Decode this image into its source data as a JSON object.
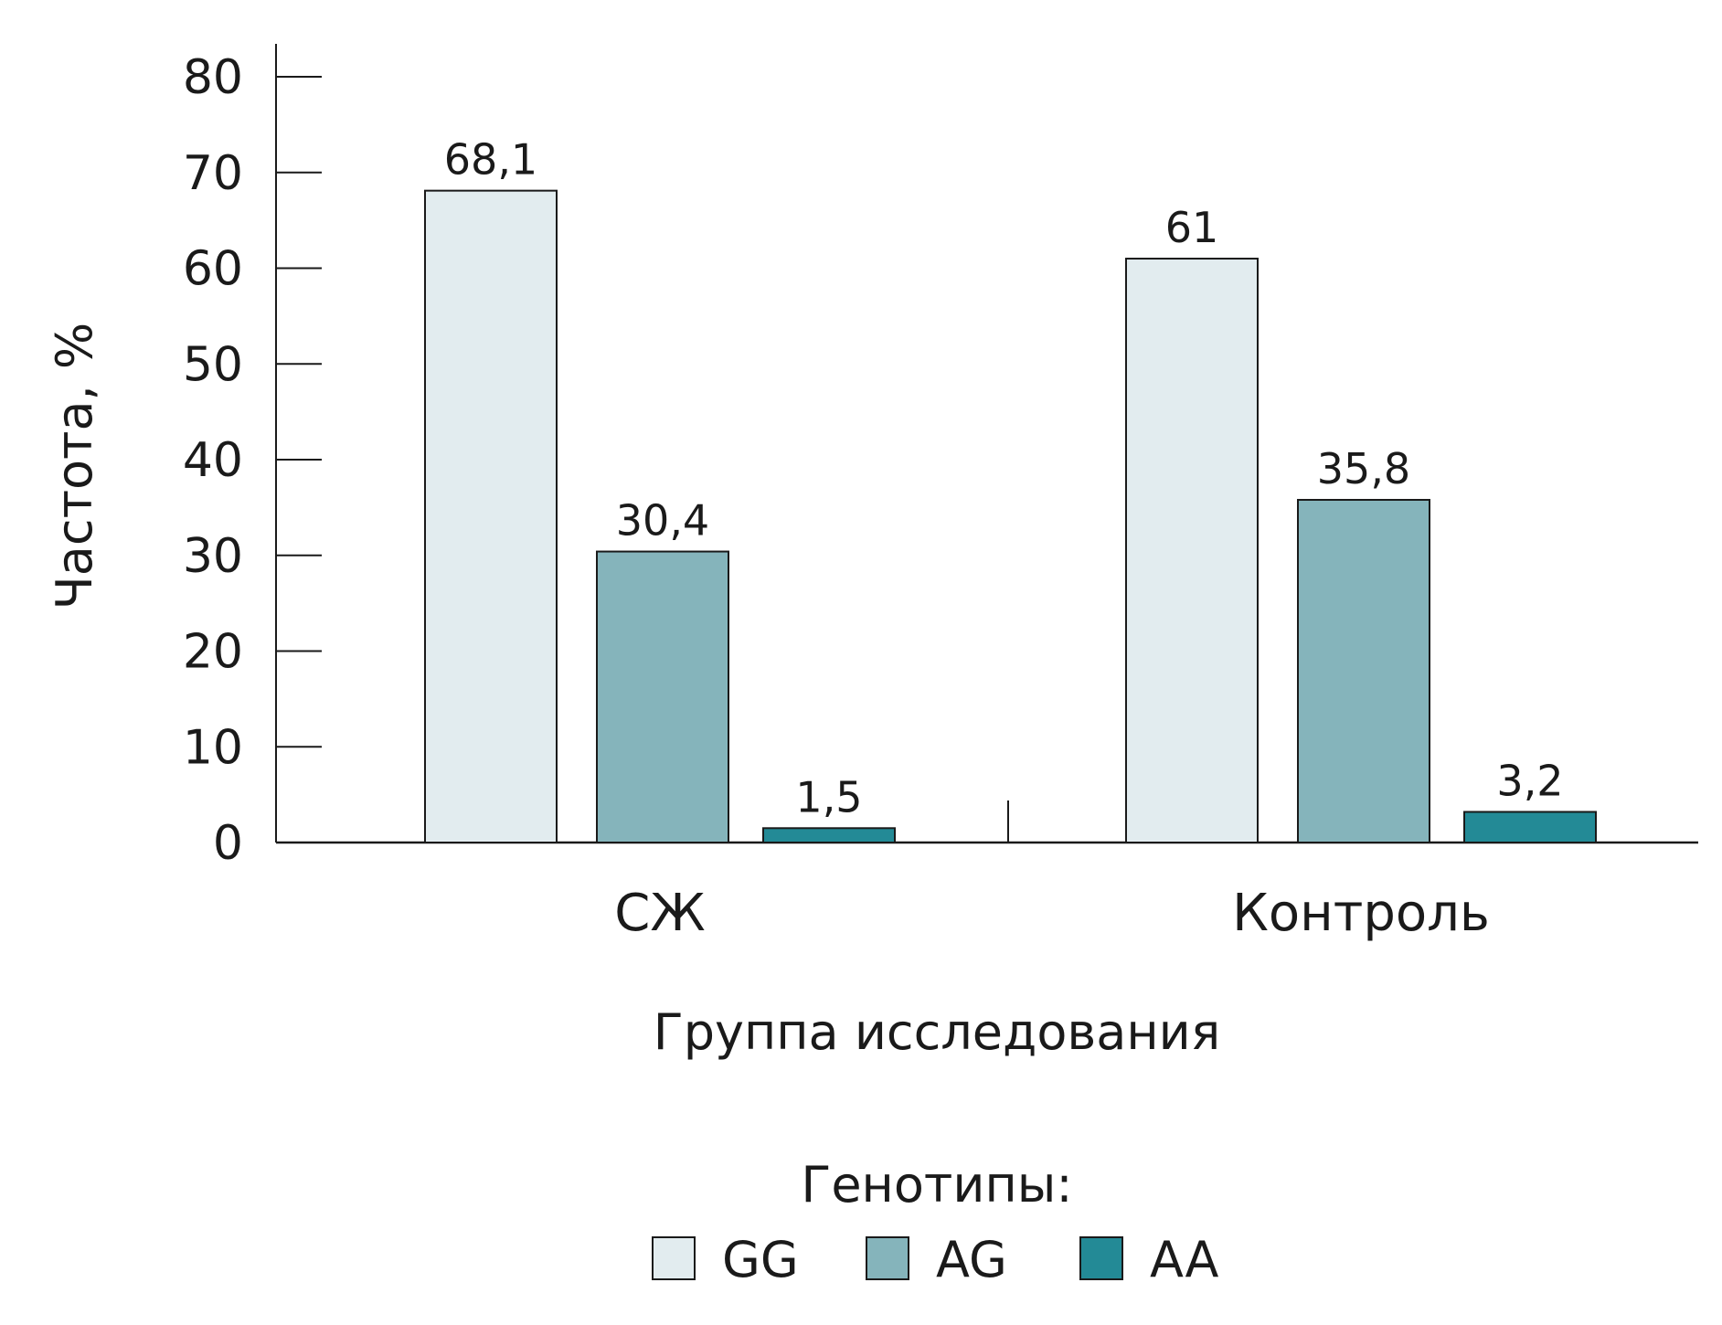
{
  "chart_data": {
    "type": "bar",
    "title": "",
    "xlabel": "Группа исследования",
    "ylabel": "Частота, %",
    "ylim": [
      0,
      80
    ],
    "yticks": [
      0,
      10,
      20,
      30,
      40,
      50,
      60,
      70,
      80
    ],
    "categories": [
      "СЖ",
      "Контроль"
    ],
    "series": [
      {
        "name": "GG",
        "color": "#e2ecef",
        "values": [
          68.1,
          61
        ],
        "labels": [
          "68,1",
          "61"
        ]
      },
      {
        "name": "AG",
        "color": "#85b4bb",
        "values": [
          30.4,
          35.8
        ],
        "labels": [
          "30,4",
          "35,8"
        ]
      },
      {
        "name": "AA",
        "color": "#238a96",
        "values": [
          1.5,
          3.2
        ],
        "labels": [
          "1,5",
          "3,2"
        ]
      }
    ],
    "legend": {
      "title": "Генотипы:",
      "placement": "bottom-center"
    },
    "grid": false
  }
}
